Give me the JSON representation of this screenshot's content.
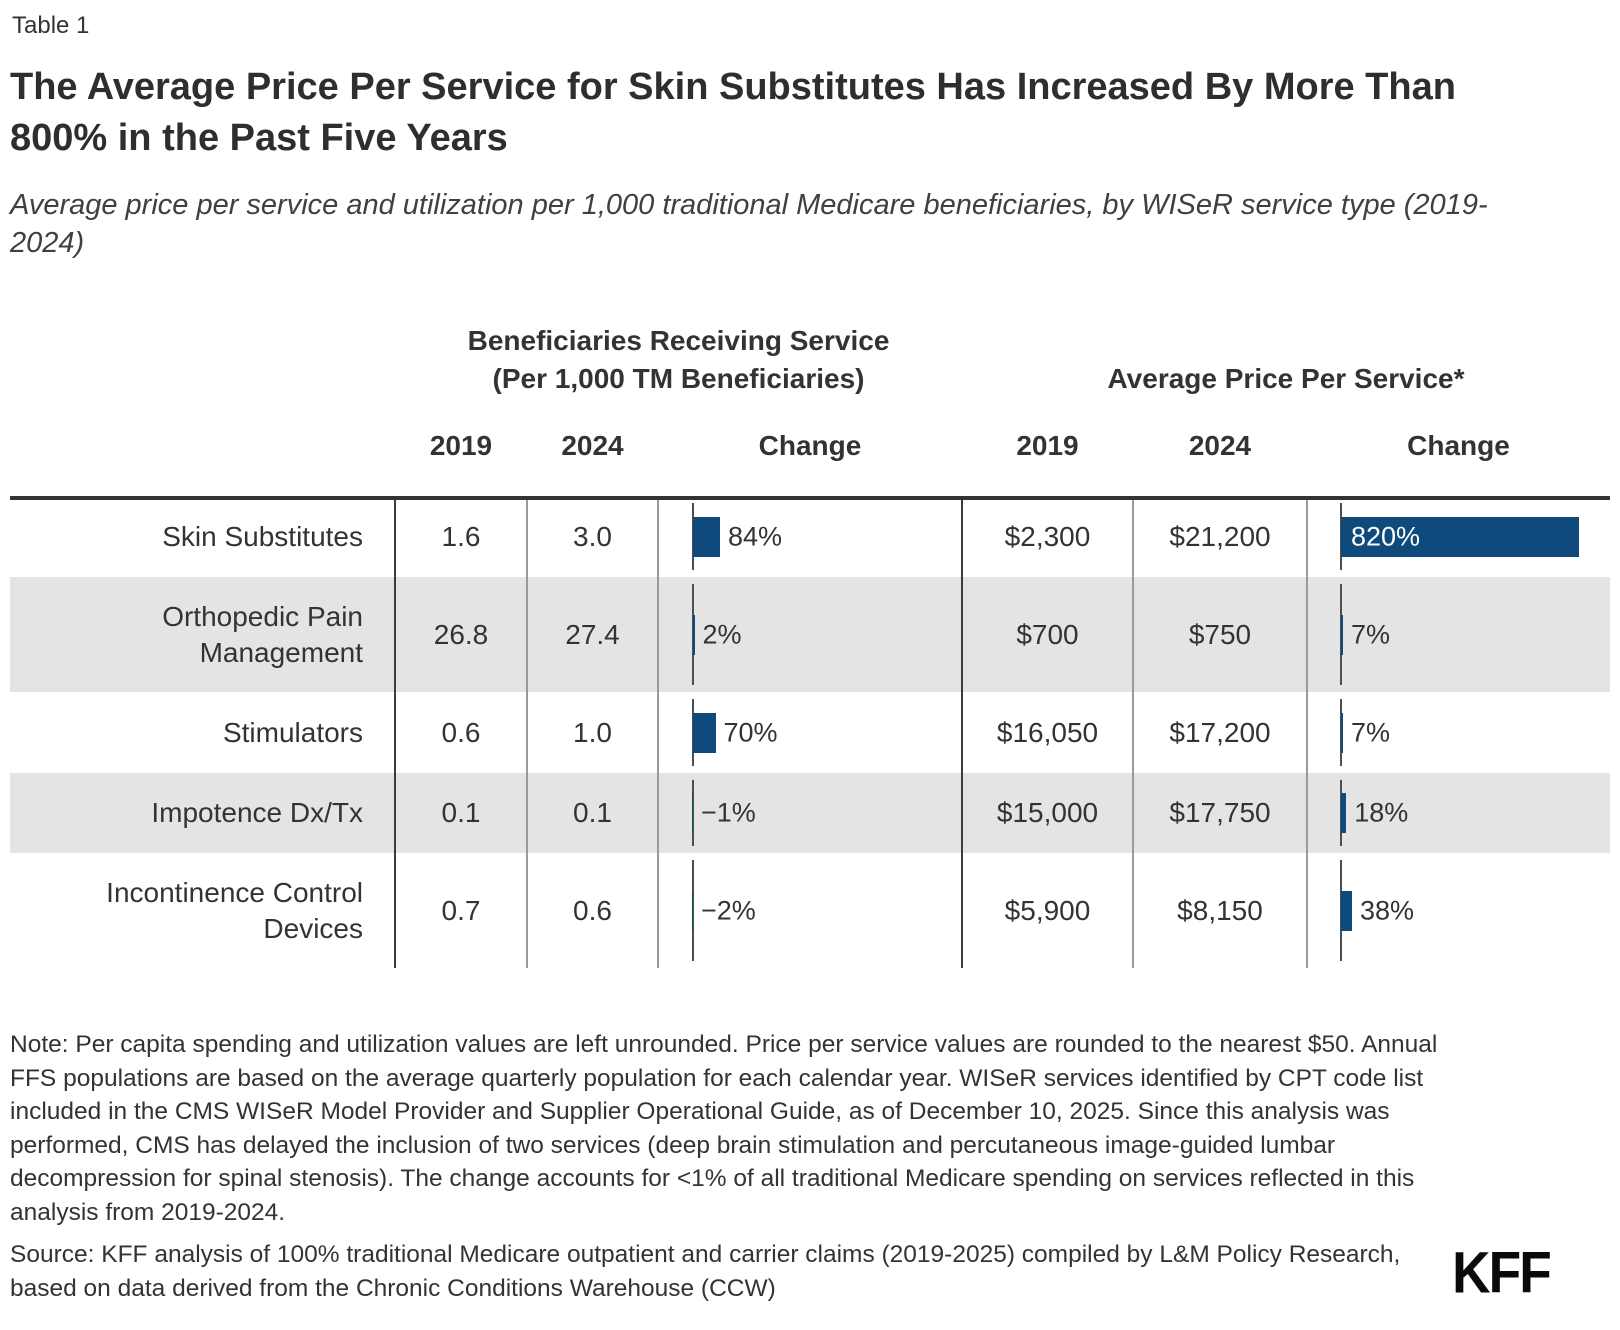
{
  "page": {
    "kicker": "Table 1",
    "title": "The Average Price Per Service for Skin Substitutes Has Increased By More Than 800% in the Past Five Years",
    "subtitle": "Average price per service and utilization per 1,000 traditional Medicare beneficiaries, by WISeR service type (2019-2024)",
    "note": "Note: Per capita spending and utilization values are left unrounded. Price per service values are rounded to the nearest $50. Annual FFS populations are based on the average quarterly population for each calendar year. WISeR services identified by CPT code list included in the CMS WISeR Model Provider and Supplier Operational Guide, as of December 10, 2025. Since this analysis was performed, CMS has delayed the inclusion of two services (deep brain stimulation and percutaneous image-guided lumbar decompression for spinal stenosis). The change accounts for <1% of all traditional Medicare spending on services reflected in this analysis from 2019-2024.",
    "source": "Source: KFF analysis of 100% traditional Medicare outpatient and carrier claims (2019-2025) compiled by L&M Policy Research, based on data derived from the Chronic Conditions Warehouse (CCW)",
    "logo": "KFF"
  },
  "table": {
    "group_headers": {
      "beneficiaries_line1": "Beneficiaries Receiving Service",
      "beneficiaries_line2": "(Per 1,000 TM Beneficiaries)",
      "price": "Average Price Per Service*"
    },
    "col_headers": {
      "u2019": "2019",
      "u2024": "2024",
      "uchange": "Change",
      "p2019": "2019",
      "p2024": "2024",
      "pchange": "Change"
    },
    "rows": [
      {
        "label": "Skin Substitutes",
        "u2019": "1.6",
        "u2024": "3.0",
        "uchange_label": "84%",
        "p2019": "$2,300",
        "p2024": "$21,200",
        "pchange_label": "820%"
      },
      {
        "label": "Orthopedic Pain Management",
        "u2019": "26.8",
        "u2024": "27.4",
        "uchange_label": "2%",
        "p2019": "$700",
        "p2024": "$750",
        "pchange_label": "7%"
      },
      {
        "label": "Stimulators",
        "u2019": "0.6",
        "u2024": "1.0",
        "uchange_label": "70%",
        "p2019": "$16,050",
        "p2024": "$17,200",
        "pchange_label": "7%"
      },
      {
        "label": "Impotence Dx/Tx",
        "u2019": "0.1",
        "u2024": "0.1",
        "uchange_label": "−1%",
        "p2019": "$15,000",
        "p2024": "$17,750",
        "pchange_label": "18%"
      },
      {
        "label": "Incontinence Control Devices",
        "u2019": "0.7",
        "u2024": "0.6",
        "uchange_label": "−2%",
        "p2019": "$5,900",
        "p2024": "$8,150",
        "pchange_label": "38%"
      }
    ]
  },
  "chart_data": {
    "type": "table",
    "title": "The Average Price Per Service for Skin Substitutes Has Increased By More Than 800% in the Past Five Years",
    "subtitle": "Average price per service and utilization per 1,000 traditional Medicare beneficiaries, by WISeR service type (2019-2024)",
    "categories": [
      "Skin Substitutes",
      "Orthopedic Pain Management",
      "Stimulators",
      "Impotence Dx/Tx",
      "Incontinence Control Devices"
    ],
    "column_groups": [
      "Beneficiaries Receiving Service (Per 1,000 TM Beneficiaries)",
      "Average Price Per Service*"
    ],
    "series": [
      {
        "name": "Beneficiaries receiving service per 1,000 TM beneficiaries, 2019",
        "values": [
          1.6,
          26.8,
          0.6,
          0.1,
          0.7
        ]
      },
      {
        "name": "Beneficiaries receiving service per 1,000 TM beneficiaries, 2024",
        "values": [
          3.0,
          27.4,
          1.0,
          0.1,
          0.6
        ]
      },
      {
        "name": "Change in beneficiaries receiving service (%)",
        "values": [
          84,
          2,
          70,
          -1,
          -2
        ],
        "display": "bar"
      },
      {
        "name": "Average price per service, 2019 ($)",
        "values": [
          2300,
          700,
          16050,
          15000,
          5900
        ]
      },
      {
        "name": "Average price per service, 2024 ($)",
        "values": [
          21200,
          750,
          17200,
          17750,
          8150
        ]
      },
      {
        "name": "Change in average price per service (%)",
        "values": [
          820,
          7,
          7,
          18,
          38
        ],
        "display": "bar"
      }
    ]
  },
  "colors": {
    "bar_positive": "#0f4a7d",
    "bar_negative": "#095748",
    "bar_label_inside": "#ffffff",
    "row_stripe": "#e4e4e4",
    "axis_line": "#4f4f4f",
    "divider_major": "#3c3c3c",
    "divider_minor": "#9a9a9a",
    "top_border": "#333333"
  }
}
